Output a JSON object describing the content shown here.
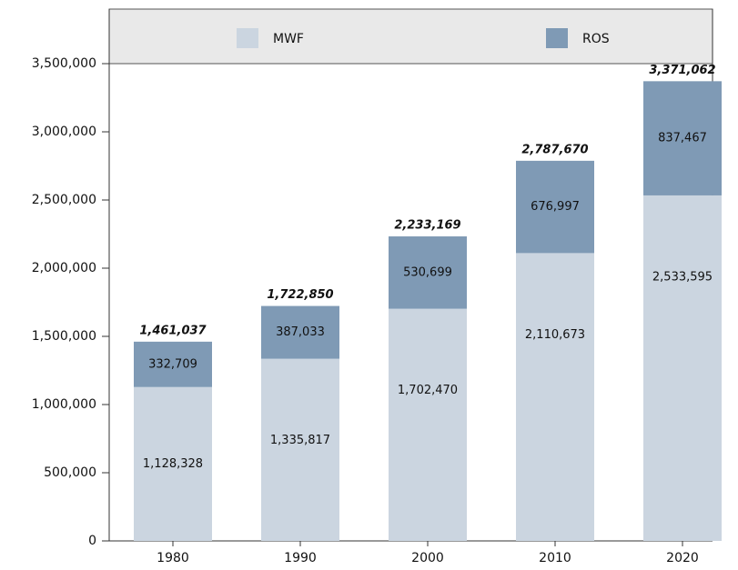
{
  "chart_data": {
    "type": "stacked_bar",
    "categories": [
      "1980",
      "1990",
      "2000",
      "2010",
      "2020"
    ],
    "series": [
      {
        "name": "MWF",
        "color": "#cbd5e0",
        "values": [
          1128328,
          1335817,
          1702470,
          2110673,
          2533595
        ],
        "value_labels": [
          "1,128,328",
          "1,335,817",
          "1,702,470",
          "2,110,673",
          "2,533,595"
        ]
      },
      {
        "name": "ROS",
        "color": "#7f9ab5",
        "values": [
          332709,
          387033,
          530699,
          676997,
          837467
        ],
        "value_labels": [
          "332,709",
          "387,033",
          "530,699",
          "676,997",
          "837,467"
        ]
      }
    ],
    "totals": [
      1461037,
      1722850,
      2233169,
      2787670,
      3371062
    ],
    "total_labels": [
      "1,461,037",
      "1,722,850",
      "2,233,169",
      "2,787,670",
      "3,371,062"
    ],
    "ylim": [
      0,
      3900000
    ],
    "yticks": [
      0,
      {
        "value": 500000,
        "label": "500,000"
      },
      {
        "value": 1000000,
        "label": "1,000,000"
      },
      {
        "value": 1500000,
        "label": "1,500,000"
      },
      {
        "value": 2000000,
        "label": "2,000,000"
      },
      {
        "value": 2500000,
        "label": "2,500,000"
      },
      {
        "value": 3000000,
        "label": "3,000,000"
      },
      {
        "value": 3500000,
        "label": "3,500,000"
      }
    ],
    "legend": "top"
  }
}
